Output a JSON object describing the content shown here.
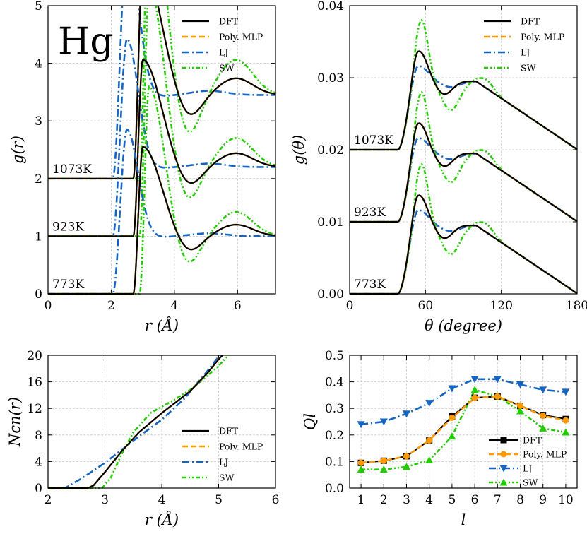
{
  "element_label": "Hg",
  "series_styles": [
    {
      "name": "DFT",
      "color": "#000000",
      "dash": "",
      "width": 2.2,
      "marker": "square"
    },
    {
      "name": "Poly. MLP",
      "color": "#ff9900",
      "dash": "8 4",
      "width": 2.6,
      "marker": "circle"
    },
    {
      "name": "LJ",
      "color": "#1565c0",
      "dash": "10 4 2 4",
      "width": 2.6,
      "marker": "triangle-down"
    },
    {
      "name": "SW",
      "color": "#22cc00",
      "dash": "6 3 2 3 2 3",
      "width": 2.6,
      "marker": "triangle-up"
    }
  ],
  "chart_data": [
    {
      "id": "gr",
      "type": "line",
      "xlabel": "r (Å)",
      "ylabel": "g(r)",
      "xlim": [
        0,
        7.2
      ],
      "ylim": [
        0,
        5
      ],
      "xticks": [
        0,
        2,
        4,
        6
      ],
      "yticks": [
        0,
        1,
        2,
        3,
        4,
        5
      ],
      "legend": [
        "DFT",
        "Poly. MLP",
        "LJ",
        "SW"
      ],
      "annotations": [
        "1073K",
        "923K",
        "773K"
      ],
      "offsets": [
        2,
        1,
        0
      ],
      "peaks": {
        "DFT": {
          "onset": 2.7,
          "peak_r": 3.0,
          "peak_h": 2.55,
          "min_r": 4.45,
          "min_h": 0.72,
          "peak2_r": 5.95,
          "peak2_h": 1.2
        },
        "LJ": {
          "onset": 2.05,
          "peak_r": 2.5,
          "peak_h": 2.85,
          "min_r": 3.4,
          "min_h": 0.98,
          "peak2_r": 5.1,
          "peak2_h": 1.05
        },
        "SW": {
          "onset": 2.9,
          "peak_r": 3.2,
          "peak_h": 3.6,
          "min_r": 4.4,
          "min_h": 0.48,
          "peak2_r": 5.95,
          "peak2_h": 1.42
        }
      }
    },
    {
      "id": "gtheta",
      "type": "line",
      "xlabel": "θ (degree)",
      "ylabel": "g(θ)",
      "xlim": [
        0,
        180
      ],
      "ylim": [
        0,
        0.04
      ],
      "xticks": [
        0,
        60,
        120,
        180
      ],
      "ytick_labels": [
        "0.00",
        "0.01",
        "0.02",
        "0.03",
        "0.04"
      ],
      "yticks": [
        0,
        0.01,
        0.02,
        0.03,
        0.04
      ],
      "legend": [
        "DFT",
        "Poly. MLP",
        "LJ",
        "SW"
      ],
      "annotations": [
        "1073K",
        "923K",
        "773K"
      ],
      "offsets": [
        0.02,
        0.01,
        0
      ]
    },
    {
      "id": "ncn",
      "type": "line",
      "xlabel": "r (Å)",
      "ylabel": "Ncn(r)",
      "xlim": [
        2,
        6
      ],
      "ylim": [
        0,
        20
      ],
      "xticks": [
        2,
        3,
        4,
        5,
        6
      ],
      "yticks": [
        0,
        4,
        8,
        12,
        16,
        20
      ],
      "legend": [
        "DFT",
        "Poly. MLP",
        "LJ",
        "SW"
      ]
    },
    {
      "id": "ql",
      "type": "line",
      "xlabel": "l",
      "ylabel": "Ql",
      "xlim": [
        0.5,
        10.5
      ],
      "ylim": [
        0,
        0.5
      ],
      "xticks": [
        1,
        2,
        3,
        4,
        5,
        6,
        7,
        8,
        9,
        10
      ],
      "ytick_labels": [
        "0.0",
        "0.1",
        "0.2",
        "0.3",
        "0.4",
        "0.5"
      ],
      "yticks": [
        0,
        0.1,
        0.2,
        0.3,
        0.4,
        0.5
      ],
      "legend": [
        "DFT",
        "Poly. MLP",
        "LJ",
        "SW"
      ],
      "x": [
        1,
        2,
        3,
        4,
        5,
        6,
        7,
        8,
        9,
        10
      ],
      "series": [
        {
          "name": "DFT",
          "values": [
            0.095,
            0.103,
            0.12,
            0.18,
            0.27,
            0.34,
            0.345,
            0.31,
            0.275,
            0.26
          ]
        },
        {
          "name": "Poly. MLP",
          "values": [
            0.095,
            0.103,
            0.12,
            0.18,
            0.265,
            0.34,
            0.345,
            0.31,
            0.272,
            0.255
          ]
        },
        {
          "name": "LJ",
          "values": [
            0.24,
            0.25,
            0.28,
            0.32,
            0.375,
            0.41,
            0.41,
            0.39,
            0.37,
            0.362
          ]
        },
        {
          "name": "SW",
          "values": [
            0.07,
            0.07,
            0.08,
            0.105,
            0.195,
            0.37,
            0.345,
            0.29,
            0.225,
            0.21
          ]
        }
      ]
    }
  ]
}
